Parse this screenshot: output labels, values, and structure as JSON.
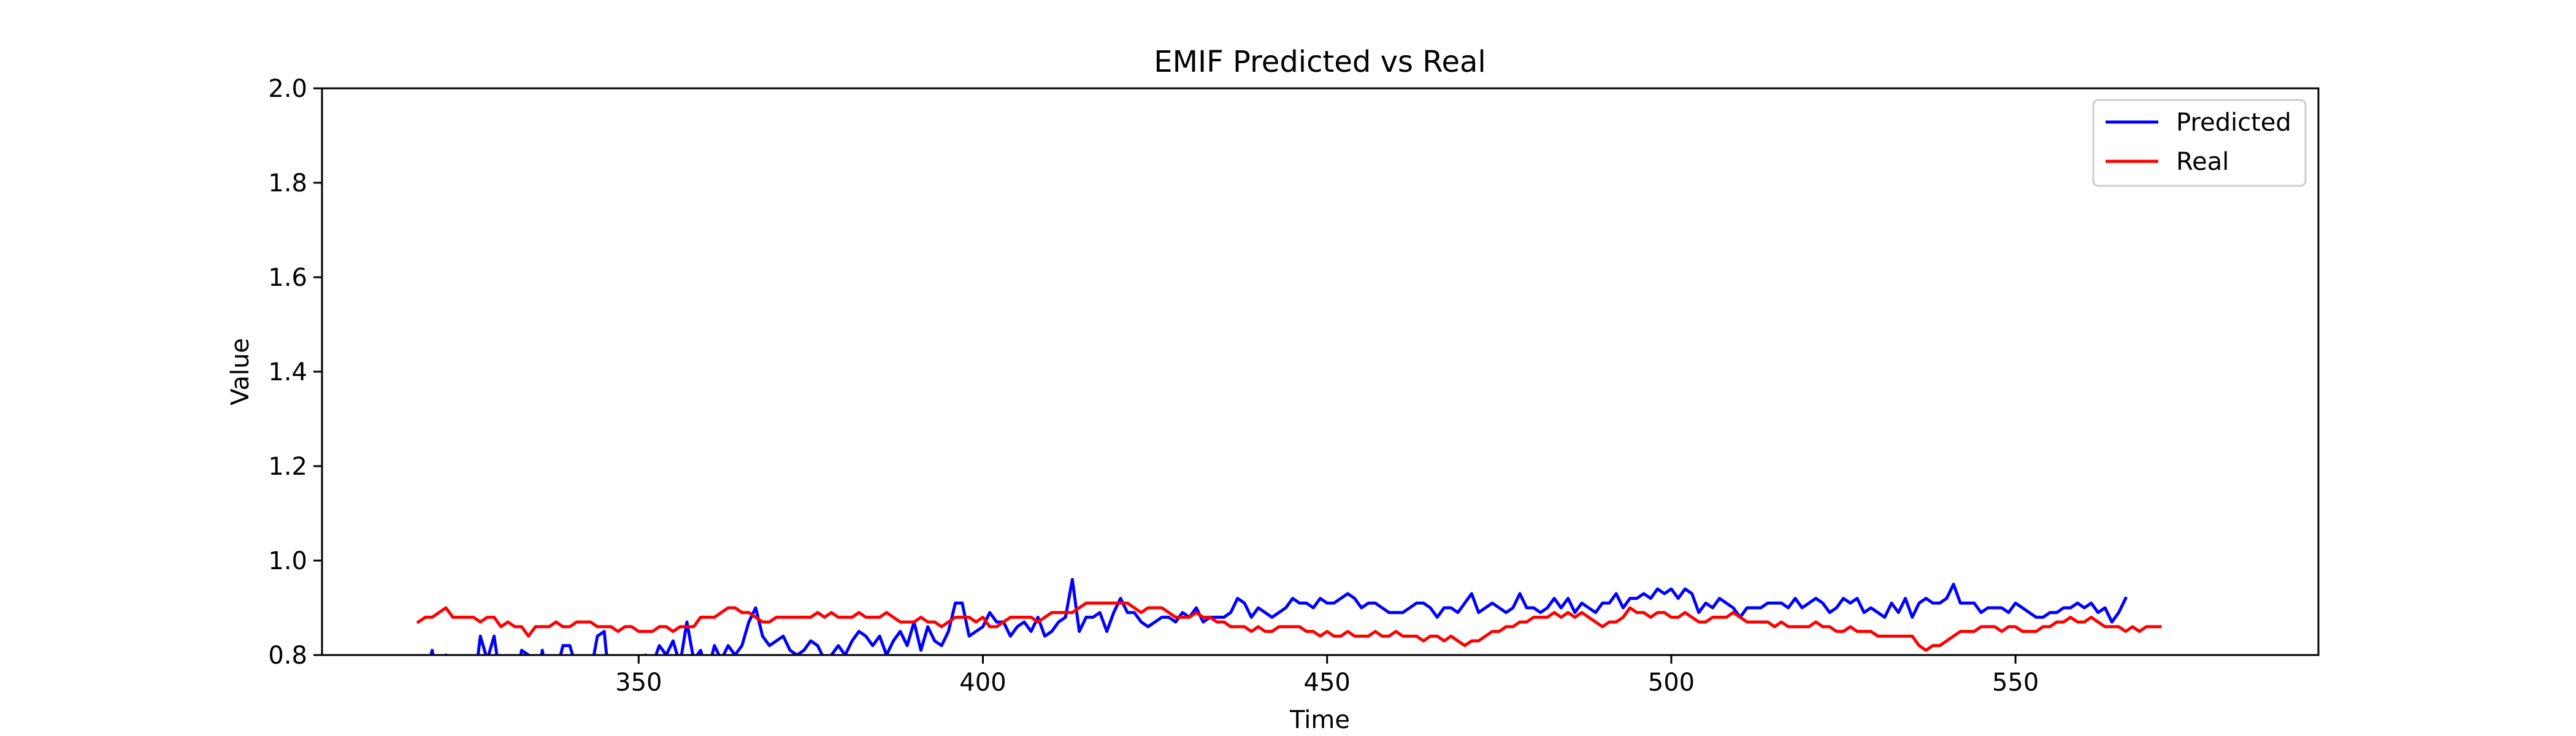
{
  "chart_data": {
    "type": "line",
    "title": "EMIF Predicted vs Real",
    "xlabel": "Time",
    "ylabel": "Value",
    "xlim": [
      304,
      594
    ],
    "ylim": [
      0.8,
      2.0
    ],
    "xticks": [
      350,
      400,
      450,
      500,
      550
    ],
    "yticks": [
      0.8,
      1.0,
      1.2,
      1.4,
      1.6,
      1.8,
      2.0
    ],
    "ytick_labels": [
      "0.8",
      "1.0",
      "1.2",
      "1.4",
      "1.6",
      "1.8",
      "2.0"
    ],
    "grid": false,
    "legend_position": "top-right",
    "series": [
      {
        "name": "Predicted",
        "color": "#0000ff",
        "x_start": 318,
        "x_step": 1,
        "values": [
          0.73,
          0.75,
          0.81,
          0.72,
          0.8,
          0.68,
          0.7,
          0.76,
          0.72,
          0.84,
          0.79,
          0.84,
          0.74,
          0.77,
          0.73,
          0.81,
          0.8,
          0.71,
          0.81,
          0.72,
          0.76,
          0.82,
          0.82,
          0.77,
          0.74,
          0.76,
          0.84,
          0.85,
          0.7,
          0.73,
          0.74,
          0.77,
          0.79,
          0.8,
          0.78,
          0.82,
          0.8,
          0.83,
          0.78,
          0.87,
          0.79,
          0.81,
          0.76,
          0.82,
          0.79,
          0.82,
          0.8,
          0.82,
          0.87,
          0.9,
          0.84,
          0.82,
          0.83,
          0.84,
          0.81,
          0.8,
          0.81,
          0.83,
          0.82,
          0.79,
          0.8,
          0.82,
          0.8,
          0.83,
          0.85,
          0.84,
          0.82,
          0.84,
          0.8,
          0.83,
          0.85,
          0.82,
          0.87,
          0.81,
          0.86,
          0.83,
          0.82,
          0.85,
          0.91,
          0.91,
          0.84,
          0.85,
          0.86,
          0.89,
          0.87,
          0.87,
          0.84,
          0.86,
          0.87,
          0.85,
          0.88,
          0.84,
          0.85,
          0.87,
          0.88,
          0.96,
          0.85,
          0.88,
          0.88,
          0.89,
          0.85,
          0.89,
          0.92,
          0.89,
          0.89,
          0.87,
          0.86,
          0.87,
          0.88,
          0.88,
          0.87,
          0.89,
          0.88,
          0.9,
          0.87,
          0.88,
          0.88,
          0.88,
          0.89,
          0.92,
          0.91,
          0.88,
          0.9,
          0.89,
          0.88,
          0.89,
          0.9,
          0.92,
          0.91,
          0.91,
          0.9,
          0.92,
          0.91,
          0.91,
          0.92,
          0.93,
          0.92,
          0.9,
          0.91,
          0.91,
          0.9,
          0.89,
          0.89,
          0.89,
          0.9,
          0.91,
          0.91,
          0.9,
          0.88,
          0.9,
          0.9,
          0.89,
          0.91,
          0.93,
          0.89,
          0.9,
          0.91,
          0.9,
          0.89,
          0.9,
          0.93,
          0.9,
          0.9,
          0.89,
          0.9,
          0.92,
          0.9,
          0.92,
          0.89,
          0.91,
          0.9,
          0.89,
          0.91,
          0.91,
          0.93,
          0.9,
          0.92,
          0.92,
          0.93,
          0.92,
          0.94,
          0.93,
          0.94,
          0.92,
          0.94,
          0.93,
          0.89,
          0.91,
          0.9,
          0.92,
          0.91,
          0.9,
          0.88,
          0.9,
          0.9,
          0.9,
          0.91,
          0.91,
          0.91,
          0.9,
          0.92,
          0.9,
          0.91,
          0.92,
          0.91,
          0.89,
          0.9,
          0.92,
          0.91,
          0.92,
          0.89,
          0.9,
          0.89,
          0.88,
          0.91,
          0.89,
          0.92,
          0.88,
          0.91,
          0.92,
          0.91,
          0.91,
          0.92,
          0.95,
          0.91,
          0.91,
          0.91,
          0.89,
          0.9,
          0.9,
          0.9,
          0.89,
          0.91,
          0.9,
          0.89,
          0.88,
          0.88,
          0.89,
          0.89,
          0.9,
          0.9,
          0.91,
          0.9,
          0.91,
          0.89,
          0.9,
          0.87,
          0.89,
          0.92
        ]
      },
      {
        "name": "Real",
        "color": "#ff0000",
        "x_start": 318,
        "x_step": 1,
        "values": [
          0.87,
          0.88,
          0.88,
          0.89,
          0.9,
          0.88,
          0.88,
          0.88,
          0.88,
          0.87,
          0.88,
          0.88,
          0.86,
          0.87,
          0.86,
          0.86,
          0.84,
          0.86,
          0.86,
          0.86,
          0.87,
          0.86,
          0.86,
          0.87,
          0.87,
          0.87,
          0.86,
          0.86,
          0.86,
          0.85,
          0.86,
          0.86,
          0.85,
          0.85,
          0.85,
          0.86,
          0.86,
          0.85,
          0.86,
          0.86,
          0.86,
          0.88,
          0.88,
          0.88,
          0.89,
          0.9,
          0.9,
          0.89,
          0.89,
          0.88,
          0.87,
          0.87,
          0.88,
          0.88,
          0.88,
          0.88,
          0.88,
          0.88,
          0.89,
          0.88,
          0.89,
          0.88,
          0.88,
          0.88,
          0.89,
          0.88,
          0.88,
          0.88,
          0.89,
          0.88,
          0.87,
          0.87,
          0.87,
          0.88,
          0.87,
          0.87,
          0.86,
          0.87,
          0.88,
          0.88,
          0.88,
          0.87,
          0.88,
          0.86,
          0.86,
          0.87,
          0.88,
          0.88,
          0.88,
          0.88,
          0.87,
          0.88,
          0.89,
          0.89,
          0.89,
          0.89,
          0.9,
          0.91,
          0.91,
          0.91,
          0.91,
          0.91,
          0.91,
          0.91,
          0.9,
          0.89,
          0.9,
          0.9,
          0.9,
          0.89,
          0.88,
          0.88,
          0.88,
          0.89,
          0.88,
          0.88,
          0.87,
          0.87,
          0.86,
          0.86,
          0.86,
          0.85,
          0.86,
          0.85,
          0.85,
          0.86,
          0.86,
          0.86,
          0.86,
          0.85,
          0.85,
          0.84,
          0.85,
          0.84,
          0.84,
          0.85,
          0.84,
          0.84,
          0.84,
          0.85,
          0.84,
          0.84,
          0.85,
          0.84,
          0.84,
          0.84,
          0.83,
          0.84,
          0.84,
          0.83,
          0.84,
          0.83,
          0.82,
          0.83,
          0.83,
          0.84,
          0.85,
          0.85,
          0.86,
          0.86,
          0.87,
          0.87,
          0.88,
          0.88,
          0.88,
          0.89,
          0.88,
          0.89,
          0.88,
          0.89,
          0.88,
          0.87,
          0.86,
          0.87,
          0.87,
          0.88,
          0.9,
          0.89,
          0.89,
          0.88,
          0.89,
          0.89,
          0.88,
          0.88,
          0.89,
          0.88,
          0.87,
          0.87,
          0.88,
          0.88,
          0.88,
          0.89,
          0.88,
          0.87,
          0.87,
          0.87,
          0.87,
          0.86,
          0.87,
          0.86,
          0.86,
          0.86,
          0.86,
          0.87,
          0.86,
          0.86,
          0.85,
          0.85,
          0.86,
          0.85,
          0.85,
          0.85,
          0.84,
          0.84,
          0.84,
          0.84,
          0.84,
          0.84,
          0.82,
          0.81,
          0.82,
          0.82,
          0.83,
          0.84,
          0.85,
          0.85,
          0.85,
          0.86,
          0.86,
          0.86,
          0.85,
          0.86,
          0.86,
          0.85,
          0.85,
          0.85,
          0.86,
          0.86,
          0.87,
          0.87,
          0.88,
          0.87,
          0.87,
          0.88,
          0.87,
          0.86,
          0.86,
          0.86,
          0.85,
          0.86,
          0.85,
          0.86,
          0.86,
          0.86
        ]
      }
    ]
  }
}
